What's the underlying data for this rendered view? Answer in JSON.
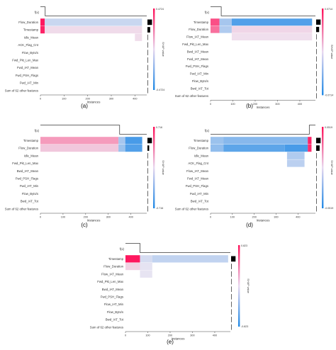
{
  "chart_data": [
    {
      "type": "heatmap",
      "panel_label": "(a)",
      "fx_label": "f(x)",
      "features": [
        "Flow_Duration",
        "Timestamp",
        "Idle_Mean",
        "ACK_Flag_Cnt",
        "Flow_Byts/s",
        "Fwd_Pkt_Len_Max",
        "Fwd_IAT_Mean",
        "Fwd_PSH_Flags",
        "Fwd_IAT_Min",
        "Sum of 62 other features"
      ],
      "instances": 450,
      "xlabel": "Instances",
      "xticks": [
        0,
        100,
        200,
        300,
        400
      ],
      "colorbar": {
        "label": "SHAP value",
        "max_label": "0.4724",
        "min_label": "-0.4724",
        "range": [
          -0.4724,
          0.4724
        ]
      },
      "fx_curve": [
        [
          0,
          0.9
        ],
        [
          20,
          0.9
        ],
        [
          20,
          0.1
        ],
        [
          450,
          0.1
        ]
      ],
      "importance": [
        0.92,
        0.55,
        0.03,
        0.03,
        0.02,
        0.02,
        0.02,
        0.02,
        0.02,
        0.06
      ],
      "cells": [
        {
          "f": 0,
          "x0": 0,
          "x1": 18,
          "v": 0.95
        },
        {
          "f": 0,
          "x0": 18,
          "x1": 430,
          "v": -0.18
        },
        {
          "f": 1,
          "x0": 0,
          "x1": 18,
          "v": 0.9
        },
        {
          "f": 1,
          "x0": 18,
          "x1": 430,
          "v": 0.06
        },
        {
          "f": 2,
          "x0": 400,
          "x1": 430,
          "v": 0.05
        }
      ]
    },
    {
      "type": "heatmap",
      "panel_label": "(b)",
      "fx_label": "f(x)",
      "features": [
        "Timestamp",
        "Flow_Duration",
        "Flow_IAT_Mean",
        "Fwd_Pkt_Len_Max",
        "Bwd_IAT_Mean",
        "Fwd_IAT_Mean",
        "Fwd_PSH_Flags",
        "Fwd_IAT_Min",
        "Flow_Byts/s",
        "Bwd_IAT_Tot",
        "Sum of 62 other features"
      ],
      "instances": 470,
      "xlabel": "Instances",
      "xticks": [
        0,
        100,
        200,
        300,
        400
      ],
      "colorbar": {
        "label": "SHAP value",
        "max_label": "0.0714",
        "min_label": "-0.0714",
        "range": [
          -0.0714,
          0.0714
        ]
      },
      "fx_curve": [
        [
          0,
          0.9
        ],
        [
          48,
          0.9
        ],
        [
          48,
          0.1
        ],
        [
          470,
          0.1
        ]
      ],
      "importance": [
        0.9,
        0.6,
        0.04,
        0.03,
        0.02,
        0.02,
        0.02,
        0.02,
        0.02,
        0.02,
        0.05
      ],
      "cells": [
        {
          "f": 0,
          "x0": 0,
          "x1": 40,
          "v": 0.7
        },
        {
          "f": 0,
          "x0": 40,
          "x1": 95,
          "v": -0.35
        },
        {
          "f": 0,
          "x0": 95,
          "x1": 455,
          "v": -0.75
        },
        {
          "f": 1,
          "x0": 0,
          "x1": 40,
          "v": 0.55
        },
        {
          "f": 1,
          "x0": 40,
          "x1": 95,
          "v": -0.3
        },
        {
          "f": 1,
          "x0": 95,
          "x1": 455,
          "v": 0.08
        },
        {
          "f": 2,
          "x0": 95,
          "x1": 455,
          "v": 0.04
        }
      ]
    },
    {
      "type": "heatmap",
      "panel_label": "(c)",
      "fx_label": "f(x)",
      "features": [
        "Timestamp",
        "Flow_Duration",
        "Idle_Mean",
        "Fwd_Pkt_Len_Max",
        "Bwd_IAT_Mean",
        "Fwd_PSH_Flags",
        "Fwd_IAT_Min",
        "Flow_Byts/s",
        "Bwd_IAT_Tot",
        "Sum of 62 other features"
      ],
      "instances": 470,
      "xlabel": "Instances",
      "xticks": [
        0,
        100,
        200,
        300,
        400
      ],
      "colorbar": {
        "label": "SHAP value",
        "max_label": "0.716",
        "min_label": "-0.716",
        "range": [
          -0.716,
          0.716
        ]
      },
      "fx_curve": [
        [
          0,
          0.9
        ],
        [
          350,
          0.9
        ],
        [
          350,
          0.1
        ],
        [
          470,
          0.1
        ]
      ],
      "importance": [
        0.9,
        0.35,
        0.03,
        0.03,
        0.02,
        0.02,
        0.02,
        0.02,
        0.02,
        0.05
      ],
      "cells": [
        {
          "f": 0,
          "x0": 0,
          "x1": 345,
          "v": 0.35
        },
        {
          "f": 0,
          "x0": 345,
          "x1": 375,
          "v": -0.35
        },
        {
          "f": 0,
          "x0": 375,
          "x1": 450,
          "v": -0.8
        },
        {
          "f": 1,
          "x0": 0,
          "x1": 345,
          "v": 0.15
        },
        {
          "f": 1,
          "x0": 345,
          "x1": 375,
          "v": -0.4
        },
        {
          "f": 1,
          "x0": 375,
          "x1": 450,
          "v": -0.75
        }
      ]
    },
    {
      "type": "heatmap",
      "panel_label": "(d)",
      "fx_label": "f(x)",
      "features": [
        "Timestamp",
        "Flow_Duration",
        "Idle_Mean",
        "ACK_Flag_Cnt",
        "Flow_IAT_Mean",
        "Fwd_IAT_Mean",
        "Fwd_PSH_Flags",
        "Fwd_IAT_Min",
        "Bwd_IAT_Tot",
        "Sum of 62 other features"
      ],
      "instances": 480,
      "xlabel": "Instances",
      "xticks": [
        0,
        100,
        200,
        300,
        400
      ],
      "colorbar": {
        "label": "SHAP value",
        "max_label": "0.0519",
        "min_label": "-0.0519",
        "range": [
          -0.0519,
          0.0519
        ]
      },
      "fx_curve": [
        [
          0,
          0.1
        ],
        [
          452,
          0.1
        ],
        [
          452,
          0.9
        ],
        [
          480,
          0.9
        ]
      ],
      "importance": [
        0.9,
        0.7,
        0.08,
        0.03,
        0.02,
        0.02,
        0.02,
        0.02,
        0.02,
        0.05
      ],
      "cells": [
        {
          "f": 0,
          "x0": 0,
          "x1": 60,
          "v": -0.4
        },
        {
          "f": 0,
          "x0": 60,
          "x1": 445,
          "v": -0.5
        },
        {
          "f": 0,
          "x0": 445,
          "x1": 462,
          "v": 0.9
        },
        {
          "f": 1,
          "x0": 0,
          "x1": 60,
          "v": -0.45
        },
        {
          "f": 1,
          "x0": 60,
          "x1": 340,
          "v": -0.7
        },
        {
          "f": 1,
          "x0": 340,
          "x1": 445,
          "v": -0.8
        },
        {
          "f": 1,
          "x0": 445,
          "x1": 462,
          "v": 0.85
        },
        {
          "f": 2,
          "x0": 350,
          "x1": 430,
          "v": -0.3
        },
        {
          "f": 3,
          "x0": 350,
          "x1": 430,
          "v": -0.25
        }
      ]
    },
    {
      "type": "heatmap",
      "panel_label": "(e)",
      "fx_label": "f(x)",
      "features": [
        "Timestamp",
        "Flow_Duration",
        "Flow_IAT_Mean",
        "Fwd_Pkt_Len_Max",
        "Bwd_IAT_Mean",
        "Fwd_PSH_Flags",
        "Flow_IAT_Min",
        "Flow_Byts/s",
        "Bwd_IAT_Tot",
        "Sum of 62 other features"
      ],
      "instances": 470,
      "xlabel": "Instances",
      "xticks": [
        0,
        100,
        200,
        300,
        400
      ],
      "colorbar": {
        "label": "SHAP value",
        "max_label": "0.823",
        "min_label": "-0.823",
        "range": [
          -0.823,
          0.823
        ]
      },
      "fx_curve": [
        [
          0,
          0.9
        ],
        [
          65,
          0.9
        ],
        [
          65,
          0.1
        ],
        [
          470,
          0.1
        ]
      ],
      "importance": [
        0.9,
        0.1,
        0.02,
        0.02,
        0.02,
        0.02,
        0.02,
        0.02,
        0.02,
        0.04
      ],
      "cells": [
        {
          "f": 0,
          "x0": 0,
          "x1": 65,
          "v": 0.95
        },
        {
          "f": 0,
          "x0": 65,
          "x1": 120,
          "v": -0.12
        },
        {
          "f": 0,
          "x0": 120,
          "x1": 460,
          "v": -0.22
        },
        {
          "f": 1,
          "x0": 0,
          "x1": 65,
          "v": 0.1
        },
        {
          "f": 1,
          "x0": 65,
          "x1": 120,
          "v": -0.05
        },
        {
          "f": 2,
          "x0": 65,
          "x1": 120,
          "v": -0.04
        }
      ]
    }
  ]
}
